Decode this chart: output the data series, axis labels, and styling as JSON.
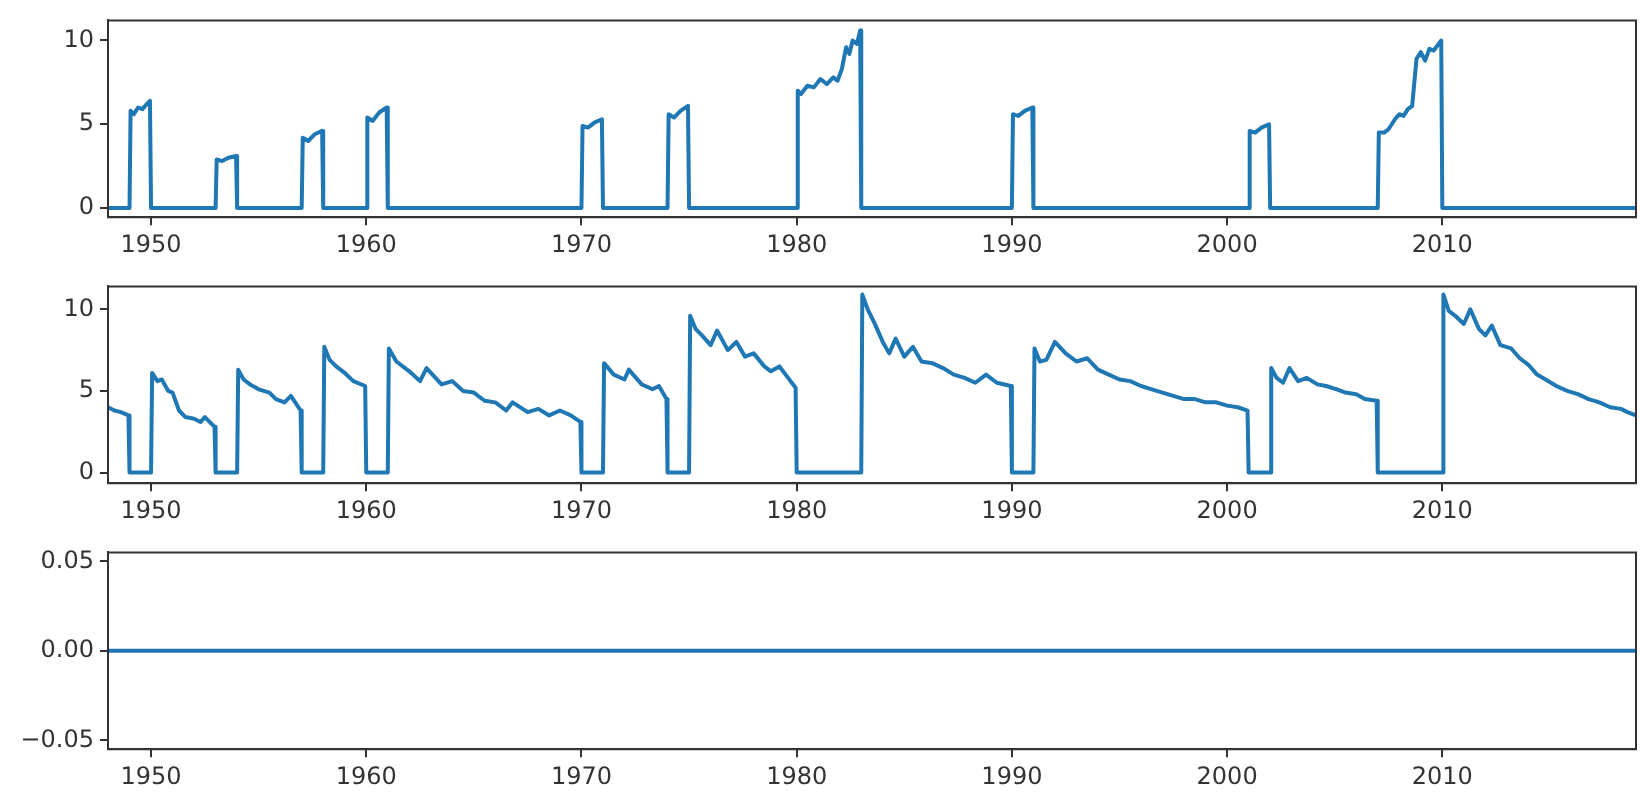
{
  "chart_data": [
    {
      "type": "line",
      "xlim": [
        1948,
        2019
      ],
      "xticks": [
        1950,
        1960,
        1970,
        1980,
        1990,
        2000,
        2010
      ],
      "ylim": [
        -0.55,
        11.2
      ],
      "yticks": [
        0,
        5,
        10
      ],
      "grid": false,
      "legend": false,
      "series": [
        {
          "color": "#1f77b4",
          "x": [
            1948,
            1949,
            1949.05,
            1949.2,
            1949.4,
            1949.6,
            1949.8,
            1949.95,
            1950,
            1953,
            1953.05,
            1953.3,
            1953.6,
            1953.95,
            1954,
            1957,
            1957.05,
            1957.3,
            1957.6,
            1957.95,
            1958,
            1960,
            1960.05,
            1960.3,
            1960.6,
            1960.95,
            1961,
            1970,
            1970.05,
            1970.3,
            1970.6,
            1970.95,
            1971,
            1974,
            1974.05,
            1974.3,
            1974.6,
            1974.95,
            1975,
            1980,
            1980.05,
            1980.2,
            1980.5,
            1980.8,
            1981.1,
            1981.4,
            1981.7,
            1981.9,
            1982.1,
            1982.3,
            1982.45,
            1982.6,
            1982.8,
            1982.95,
            1983,
            1990,
            1990.05,
            1990.3,
            1990.6,
            1990.95,
            1991,
            2001,
            2001.05,
            2001.3,
            2001.6,
            2001.95,
            2002,
            2007,
            2007.05,
            2007.3,
            2007.5,
            2007.8,
            2008,
            2008.2,
            2008.4,
            2008.6,
            2008.8,
            2009,
            2009.2,
            2009.4,
            2009.6,
            2009.95,
            2010,
            2019
          ],
          "values": [
            0,
            0,
            5.8,
            5.6,
            6.0,
            5.9,
            6.2,
            6.4,
            0,
            0,
            2.9,
            2.8,
            3.0,
            3.1,
            0,
            0,
            4.2,
            4.0,
            4.4,
            4.6,
            0,
            0,
            5.4,
            5.2,
            5.7,
            6.0,
            0,
            0,
            4.9,
            4.8,
            5.1,
            5.3,
            0,
            0,
            5.6,
            5.4,
            5.8,
            6.1,
            0,
            0,
            7.0,
            6.8,
            7.3,
            7.2,
            7.7,
            7.4,
            7.8,
            7.6,
            8.3,
            9.6,
            9.2,
            10.0,
            9.8,
            10.6,
            0,
            0,
            5.6,
            5.5,
            5.8,
            6.0,
            0,
            0,
            4.6,
            4.5,
            4.8,
            5.0,
            0,
            0,
            4.5,
            4.5,
            4.7,
            5.3,
            5.6,
            5.5,
            5.9,
            6.1,
            8.9,
            9.3,
            8.8,
            9.5,
            9.4,
            10.0,
            0,
            0
          ]
        }
      ]
    },
    {
      "type": "line",
      "xlim": [
        1948,
        2019
      ],
      "xticks": [
        1950,
        1960,
        1970,
        1980,
        1990,
        2000,
        2010
      ],
      "ylim": [
        -0.65,
        11.4
      ],
      "yticks": [
        0,
        5,
        10
      ],
      "grid": false,
      "legend": false,
      "series": [
        {
          "color": "#1f77b4",
          "x": [
            1948,
            1948.3,
            1948.6,
            1948.95,
            1949,
            1950,
            1950.05,
            1950.3,
            1950.5,
            1950.8,
            1951,
            1951.3,
            1951.6,
            1952,
            1952.3,
            1952.5,
            1952.95,
            1953,
            1954,
            1954.05,
            1954.3,
            1954.6,
            1955,
            1955.5,
            1955.8,
            1956.2,
            1956.5,
            1956.95,
            1957,
            1958,
            1958.05,
            1958.3,
            1958.6,
            1959,
            1959.4,
            1959.95,
            1960,
            1961,
            1961.05,
            1961.4,
            1962,
            1962.5,
            1962.8,
            1963.5,
            1964,
            1964.5,
            1965,
            1965.5,
            1966,
            1966.5,
            1966.8,
            1967.5,
            1968,
            1968.5,
            1969,
            1969.5,
            1969.95,
            1970,
            1971,
            1971.05,
            1971.5,
            1972,
            1972.2,
            1972.8,
            1973.3,
            1973.6,
            1973.95,
            1974,
            1975,
            1975.05,
            1975.3,
            1975.6,
            1976,
            1976.3,
            1976.8,
            1977.2,
            1977.6,
            1978,
            1978.5,
            1978.8,
            1979.2,
            1979.6,
            1979.95,
            1980,
            1983,
            1983.05,
            1983.3,
            1983.6,
            1984,
            1984.3,
            1984.6,
            1985,
            1985.4,
            1985.8,
            1986.3,
            1986.8,
            1987.3,
            1987.8,
            1988.3,
            1988.8,
            1989.3,
            1989.95,
            1990,
            1991,
            1991.05,
            1991.3,
            1991.6,
            1992,
            1992.5,
            1993,
            1993.5,
            1994,
            1994.5,
            1995,
            1995.5,
            1996,
            1996.5,
            1997,
            1997.5,
            1998,
            1998.5,
            1999,
            1999.5,
            2000,
            2000.5,
            2000.95,
            2001,
            2002,
            2002.05,
            2002.3,
            2002.6,
            2002.9,
            2003.3,
            2003.7,
            2004.2,
            2004.6,
            2005.1,
            2005.5,
            2006,
            2006.4,
            2006.95,
            2007,
            2010,
            2010.05,
            2010.3,
            2010.6,
            2011,
            2011.3,
            2011.7,
            2012,
            2012.3,
            2012.7,
            2013.2,
            2013.6,
            2014,
            2014.4,
            2014.8,
            2015.3,
            2015.8,
            2016.3,
            2016.8,
            2017.3,
            2017.8,
            2018.3,
            2018.6,
            2019
          ],
          "values": [
            4.0,
            3.8,
            3.7,
            3.5,
            0,
            0,
            6.1,
            5.6,
            5.7,
            5.0,
            4.9,
            3.8,
            3.4,
            3.3,
            3.1,
            3.4,
            2.8,
            0,
            0,
            6.3,
            5.7,
            5.4,
            5.1,
            4.9,
            4.5,
            4.3,
            4.7,
            3.8,
            0,
            0,
            7.7,
            6.9,
            6.5,
            6.1,
            5.6,
            5.3,
            0,
            0,
            7.6,
            6.8,
            6.2,
            5.6,
            6.4,
            5.4,
            5.6,
            5.0,
            4.9,
            4.4,
            4.3,
            3.8,
            4.3,
            3.7,
            3.9,
            3.5,
            3.8,
            3.5,
            3.1,
            0,
            0,
            6.7,
            6.0,
            5.7,
            6.3,
            5.4,
            5.1,
            5.3,
            4.5,
            0,
            0,
            9.6,
            8.8,
            8.4,
            7.8,
            8.7,
            7.5,
            8.0,
            7.1,
            7.3,
            6.5,
            6.2,
            6.5,
            5.8,
            5.2,
            0,
            0,
            10.9,
            10.0,
            9.2,
            8.0,
            7.3,
            8.2,
            7.1,
            7.7,
            6.8,
            6.7,
            6.4,
            6.0,
            5.8,
            5.5,
            6.0,
            5.5,
            5.3,
            0,
            0,
            7.6,
            6.8,
            6.9,
            8.0,
            7.3,
            6.8,
            7.0,
            6.3,
            6.0,
            5.7,
            5.6,
            5.3,
            5.1,
            4.9,
            4.7,
            4.5,
            4.5,
            4.3,
            4.3,
            4.1,
            4.0,
            3.8,
            0,
            0,
            6.4,
            5.8,
            5.5,
            6.4,
            5.6,
            5.8,
            5.4,
            5.3,
            5.1,
            4.9,
            4.8,
            4.5,
            4.4,
            0,
            0,
            10.9,
            9.9,
            9.6,
            9.1,
            10.0,
            8.8,
            8.4,
            9.0,
            7.8,
            7.6,
            7.0,
            6.6,
            6.0,
            5.7,
            5.3,
            5.0,
            4.8,
            4.5,
            4.3,
            4.0,
            3.9,
            3.7,
            3.5
          ]
        }
      ]
    },
    {
      "type": "line",
      "xlim": [
        1948,
        2019
      ],
      "xticks": [
        1950,
        1960,
        1970,
        1980,
        1990,
        2000,
        2010
      ],
      "ylim": [
        -0.055,
        0.055
      ],
      "yticks": [
        {
          "value": -0.05,
          "label": "−0.05"
        },
        {
          "value": 0,
          "label": "0.00"
        },
        {
          "value": 0.05,
          "label": "0.05"
        }
      ],
      "grid": false,
      "legend": false,
      "series": [
        {
          "color": "#1f77b4",
          "x": [
            1948,
            2019
          ],
          "values": [
            0,
            0
          ]
        }
      ]
    }
  ]
}
